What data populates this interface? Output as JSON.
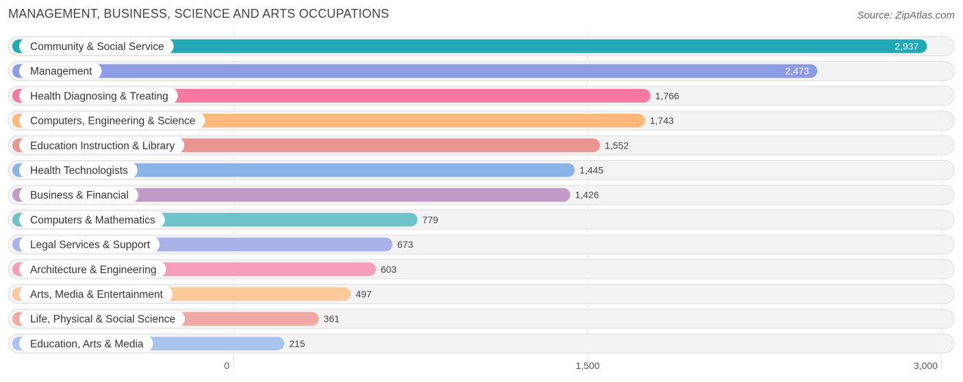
{
  "header": {
    "title": "MANAGEMENT, BUSINESS, SCIENCE AND ARTS OCCUPATIONS",
    "source": "Source: ZipAtlas.com"
  },
  "chart_data": {
    "type": "bar",
    "orientation": "horizontal",
    "title": "MANAGEMENT, BUSINESS, SCIENCE AND ARTS OCCUPATIONS",
    "xlabel": "",
    "ylabel": "",
    "xlim": [
      0,
      3000
    ],
    "x_ticks": [
      0,
      1500,
      3000
    ],
    "x_tick_labels": [
      "0",
      "1,500",
      "3,000"
    ],
    "grid": true,
    "categories": [
      "Community & Social Service",
      "Management",
      "Health Diagnosing & Treating",
      "Computers, Engineering & Science",
      "Education Instruction & Library",
      "Health Technologists",
      "Business & Financial",
      "Computers & Mathematics",
      "Legal Services & Support",
      "Architecture & Engineering",
      "Arts, Media & Entertainment",
      "Life, Physical & Social Science",
      "Education, Arts & Media"
    ],
    "values": [
      2937,
      2473,
      1766,
      1743,
      1552,
      1445,
      1426,
      779,
      673,
      603,
      497,
      361,
      215
    ],
    "value_labels": [
      "2,937",
      "2,473",
      "1,766",
      "1,743",
      "1,552",
      "1,445",
      "1,426",
      "779",
      "673",
      "603",
      "497",
      "361",
      "215"
    ],
    "colors": [
      "#22a7b5",
      "#8b9ce3",
      "#f6799f",
      "#fdb87a",
      "#e8948f",
      "#8ab4e6",
      "#c29ac6",
      "#6ec3cb",
      "#a9b3ea",
      "#f69dbb",
      "#fcc99a",
      "#f0aaa6",
      "#a9c5ee"
    ],
    "value_labels_inside": [
      true,
      true,
      false,
      false,
      false,
      false,
      false,
      false,
      false,
      false,
      false,
      false,
      false
    ]
  }
}
